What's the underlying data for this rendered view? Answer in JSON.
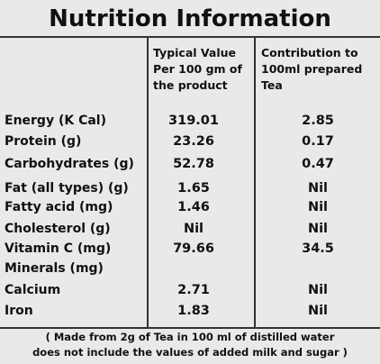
{
  "header": {
    "title": "Nutrition Information"
  },
  "table": {
    "columns": [
      [
        "Typical Value",
        "Per 100 gm of",
        "the product"
      ],
      [
        "Contribution to",
        "100ml prepared",
        "Tea"
      ]
    ],
    "rows": [
      {
        "label": "Energy (K Cal)",
        "typical": "319.01",
        "contribution": "2.85"
      },
      {
        "label": "Protein (g)",
        "typical": "23.26",
        "contribution": "0.17"
      },
      {
        "label": "Carbohydrates (g)",
        "typical": "52.78",
        "contribution": "0.47"
      },
      {
        "label": "Fat (all types) (g)",
        "typical": "1.65",
        "contribution": "Nil"
      },
      {
        "label": "Fatty acid (mg)",
        "typical": "1.46",
        "contribution": "Nil"
      },
      {
        "label": "Cholesterol (g)",
        "typical": "Nil",
        "contribution": "Nil"
      },
      {
        "label": "Vitamin C (mg)",
        "typical": "79.66",
        "contribution": "34.5"
      },
      {
        "label": "Minerals (mg)"
      },
      {
        "label": "Calcium",
        "typical": "2.71",
        "contribution": "Nil"
      },
      {
        "label": "Iron",
        "typical": "1.83",
        "contribution": "Nil"
      }
    ]
  },
  "footnote": [
    "( Made from 2g of Tea in 100 ml of distilled water",
    "does not include the values of added milk and sugar )"
  ]
}
